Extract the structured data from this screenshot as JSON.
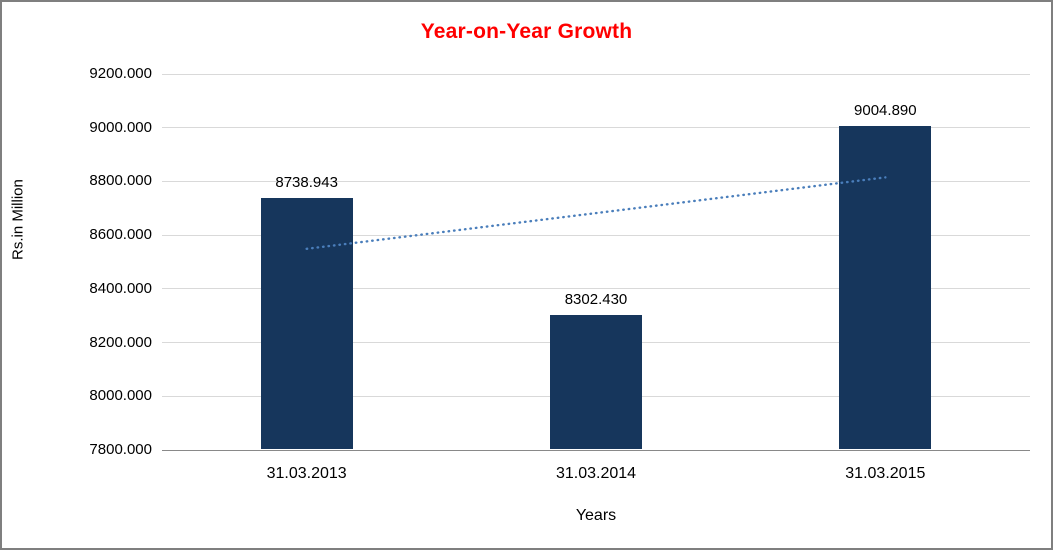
{
  "chart_data": {
    "type": "bar",
    "title": "Year-on-Year Growth",
    "categories": [
      "31.03.2013",
      "31.03.2014",
      "31.03.2015"
    ],
    "values": [
      8738.943,
      8302.43,
      9004.89
    ],
    "value_labels": [
      "8738.943",
      "8302.430",
      "9004.890"
    ],
    "xlabel": "Years",
    "ylabel": "Rs.in Million",
    "ylim": [
      7800,
      9200
    ],
    "ytick_step": 200,
    "ytick_labels": [
      "7800.000",
      "8000.000",
      "8200.000",
      "8400.000",
      "8600.000",
      "8800.000",
      "9000.000",
      "9200.000"
    ],
    "grid": true,
    "legend": "none",
    "trendline": {
      "type": "linear",
      "style": "dotted",
      "approx_start_value": 8549.1,
      "approx_end_value": 8815.1
    },
    "colors": {
      "bar": "#16365c",
      "title": "#ff0000",
      "trendline": "#4a7ebb",
      "gridline": "#d9d9d9",
      "axis": "#898989",
      "text": "#000000",
      "frame_border": "#7f7f7f",
      "background": "#ffffff"
    }
  }
}
